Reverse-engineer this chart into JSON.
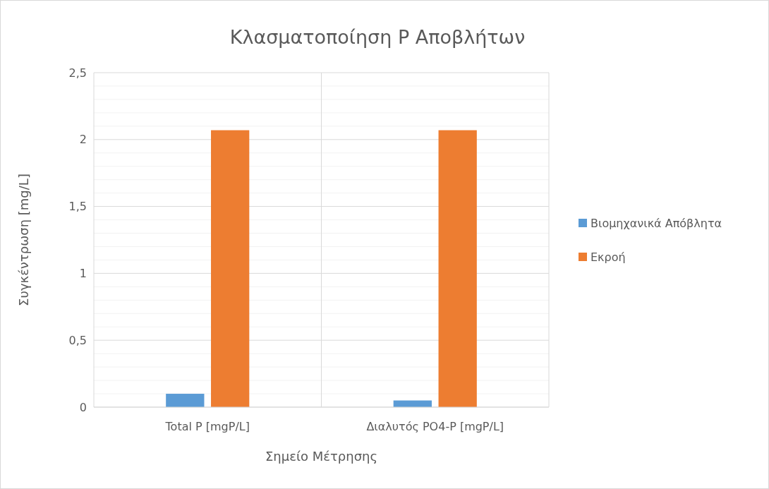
{
  "chart_data": {
    "type": "bar",
    "title": "Κλασματοποίηση P Αποβλήτων",
    "xlabel": "Σημείο Μέτρησης",
    "ylabel": "Συγκέντρωση [mg/L]",
    "categories": [
      "Total P [mgP/L]",
      "Διαλυτός PO4-P [mgP/L]"
    ],
    "series": [
      {
        "name": "Βιομηχανικά Απόβλητα",
        "color": "#5b9bd5",
        "values": [
          0.1,
          0.05
        ]
      },
      {
        "name": "Εκροή",
        "color": "#ed7d31",
        "values": [
          2.07,
          2.07
        ]
      }
    ],
    "ylim": [
      0,
      2.5
    ],
    "yticks": [
      0,
      {
        "value": 0.5,
        "label": "0,5"
      },
      1,
      {
        "value": 1.5,
        "label": "1,5"
      },
      2,
      {
        "value": 2.5,
        "label": "2,5"
      }
    ],
    "grid": true,
    "legend": "right"
  }
}
